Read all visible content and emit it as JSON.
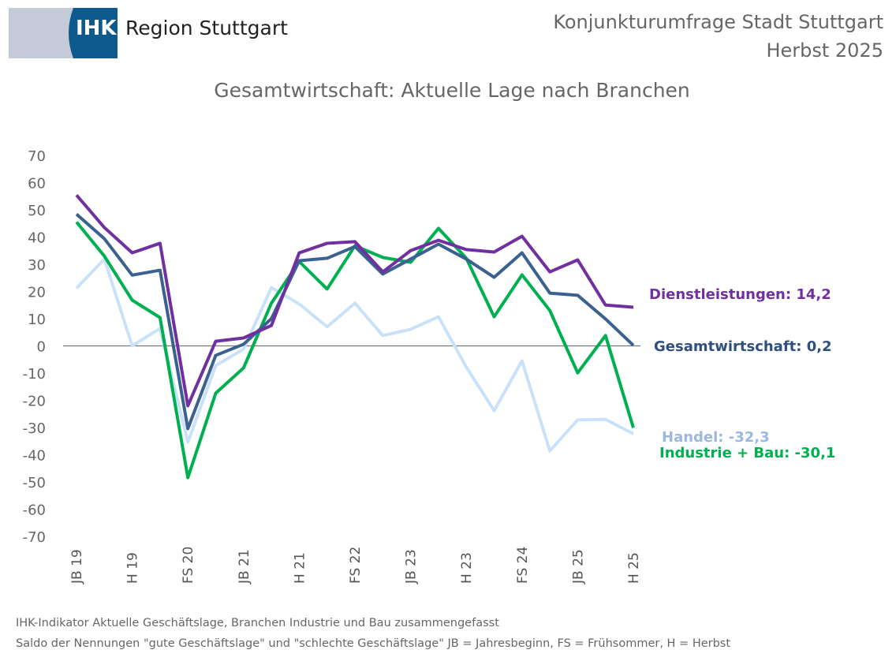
{
  "header": {
    "logo_text": "IHK",
    "logo_region": "Region Stuttgart",
    "survey": "Konjunkturumfrage Stadt Stuttgart",
    "season": "Herbst 2025"
  },
  "footer": {
    "line1": "IHK-Indikator Aktuelle Geschäftslage, Branchen Industrie und Bau zusammengefasst",
    "line2": "Saldo der Nennungen \"gute Geschäftslage\" und \"schlechte Geschäftslage\" JB = Jahresbeginn, FS = Frühsommer, H = Herbst"
  },
  "chart_data": {
    "type": "line",
    "title": "Gesamtwirtschaft: Aktuelle Lage nach Branchen",
    "ylim": [
      -70,
      70
    ],
    "yticks": [
      70,
      60,
      50,
      40,
      30,
      20,
      10,
      0,
      -10,
      -20,
      -30,
      -40,
      -50,
      -60,
      -70
    ],
    "x": [
      "JB 19",
      "FS 19",
      "H 19",
      "JB 20",
      "FS 20",
      "H 20",
      "JB 21",
      "FS 21",
      "H 21",
      "JB 22",
      "FS 22",
      "H 22",
      "JB 23",
      "FS 23",
      "H 23",
      "JB 24",
      "FS 24",
      "H 24",
      "JB 25",
      "FS 25",
      "H 25"
    ],
    "xtick_labels": [
      "JB 19",
      "H 19",
      "FS 20",
      "JB 21",
      "H 21",
      "FS 22",
      "JB 23",
      "H 23",
      "FS 24",
      "JB 25",
      "H 25"
    ],
    "grid": false,
    "series": [
      {
        "name": "Handel",
        "end_label": "Handel: -32,3",
        "color": "#c9e2fa",
        "label_color": "#9db8e0",
        "values": [
          21.2,
          31.9,
          0,
          6.4,
          -35.4,
          -7.2,
          -1.2,
          21.4,
          15.4,
          7,
          15.7,
          3.8,
          6.1,
          10.7,
          -7.8,
          -23.8,
          -5.5,
          -38.6,
          -27.2,
          -27,
          -32.3
        ]
      },
      {
        "name": "Industrie + Bau",
        "end_label": "Industrie + Bau: -30,1",
        "color": "#00b050",
        "label_color": "#00b050",
        "values": [
          45.5,
          33,
          16.8,
          10.4,
          -48.4,
          -17.4,
          -8.1,
          15.7,
          31,
          20.9,
          36.8,
          32.5,
          30.7,
          43.2,
          32.2,
          10.7,
          26.1,
          13,
          -9.9,
          3.8,
          -30.1
        ]
      },
      {
        "name": "Gesamtwirtschaft",
        "end_label": "Gesamtwirtschaft: 0,2",
        "color": "#3b6190",
        "label_color": "#2f4f7f",
        "values": [
          48.4,
          39.4,
          26,
          27.8,
          -30.4,
          -3.5,
          0.6,
          10,
          31.3,
          32.2,
          36.5,
          26.4,
          31.9,
          37.4,
          31.9,
          25.2,
          34.2,
          19.4,
          18.6,
          9.9,
          0.2
        ]
      },
      {
        "name": "Dienstleistungen",
        "end_label": "Dienstleistungen: 14,2",
        "color": "#7030a0",
        "label_color": "#7030a0",
        "values": [
          55.4,
          43.5,
          34.2,
          37.7,
          -22,
          1.7,
          2.9,
          7.5,
          34.2,
          37.7,
          38.3,
          27.2,
          35,
          38.8,
          35.4,
          34.5,
          40.3,
          27.2,
          31.6,
          15,
          14.2
        ]
      }
    ]
  }
}
